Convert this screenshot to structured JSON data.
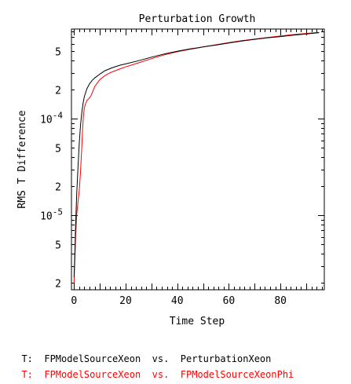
{
  "chart_data": {
    "type": "line",
    "title": "Perturbation Growth",
    "xlabel": "Time Step",
    "ylabel": "RMS T Difference",
    "xlim": [
      -1,
      97
    ],
    "ylim": [
      1.7e-06,
      0.00085
    ],
    "yscale": "log",
    "x_ticks": [
      0,
      20,
      40,
      60,
      80
    ],
    "y_ticks": [
      {
        "value": 2e-06,
        "mantissa": "2",
        "base": "",
        "exp": ""
      },
      {
        "value": 5e-06,
        "mantissa": "5",
        "base": "",
        "exp": ""
      },
      {
        "value": 1e-05,
        "mantissa": "",
        "base": "10",
        "exp": "-5"
      },
      {
        "value": 2e-05,
        "mantissa": "2",
        "base": "",
        "exp": ""
      },
      {
        "value": 5e-05,
        "mantissa": "5",
        "base": "",
        "exp": ""
      },
      {
        "value": 0.0001,
        "mantissa": "",
        "base": "10",
        "exp": "-4"
      },
      {
        "value": 0.0002,
        "mantissa": "2",
        "base": "",
        "exp": ""
      },
      {
        "value": 0.0005,
        "mantissa": "5",
        "base": "",
        "exp": ""
      }
    ],
    "grid": false,
    "series": [
      {
        "color": "#000000",
        "x": [
          0,
          0.3,
          0.6,
          1,
          1.5,
          2,
          2.5,
          3,
          3.5,
          4,
          5,
          6,
          7,
          8,
          10,
          12,
          15,
          18,
          20,
          25,
          30,
          35,
          40,
          45,
          50,
          55,
          60,
          65,
          70,
          75,
          80,
          85,
          90,
          95
        ],
        "y": [
          2.3e-06,
          4e-06,
          8e-06,
          1.6e-05,
          3e-05,
          5.5e-05,
          8.5e-05,
          0.000115,
          0.000145,
          0.00017,
          0.000205,
          0.00023,
          0.00025,
          0.000265,
          0.00029,
          0.000315,
          0.00034,
          0.00036,
          0.00037,
          0.0004,
          0.000435,
          0.00047,
          0.0005,
          0.00053,
          0.000555,
          0.00058,
          0.00061,
          0.00064,
          0.000665,
          0.00069,
          0.00071,
          0.000735,
          0.000755,
          0.00078
        ]
      },
      {
        "color": "#ff0000",
        "x": [
          0,
          0.3,
          0.6,
          1,
          1.5,
          2,
          2.5,
          3,
          3.3,
          3.6,
          4,
          4.5,
          5,
          5.5,
          6,
          6.5,
          7,
          8,
          9,
          10,
          12,
          14,
          16,
          18,
          20,
          25,
          30,
          35,
          40,
          45,
          50,
          55,
          60,
          65,
          70,
          75,
          80,
          85,
          90,
          95
        ],
        "y": [
          2e-06,
          3.5e-06,
          6e-06,
          1e-05,
          1.35e-05,
          1.8e-05,
          2.8e-05,
          5e-05,
          7.5e-05,
          0.000105,
          0.00013,
          0.000145,
          0.000155,
          0.00016,
          0.000165,
          0.000172,
          0.000185,
          0.000215,
          0.000235,
          0.000255,
          0.00028,
          0.0003,
          0.000315,
          0.00033,
          0.000345,
          0.00038,
          0.00042,
          0.00046,
          0.000495,
          0.000525,
          0.000555,
          0.000585,
          0.000615,
          0.000645,
          0.00067,
          0.000695,
          0.00072,
          0.000745,
          0.000765,
          0.000785
        ]
      }
    ]
  },
  "legend": [
    {
      "prefix": "T:",
      "model": "FPModelSourceXeon",
      "vs": "vs.",
      "reference": "PerturbationXeon",
      "color": "#000000"
    },
    {
      "prefix": "T:",
      "model": "FPModelSourceXeon",
      "vs": "vs.",
      "reference": "FPModelSourceXeonPhi",
      "color": "#ff0000"
    }
  ]
}
